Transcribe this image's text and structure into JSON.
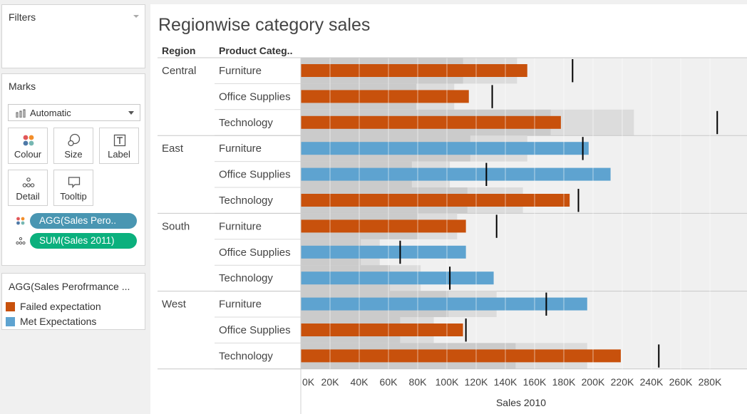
{
  "filters": {
    "title": "Filters"
  },
  "marks": {
    "title": "Marks",
    "mark_type": "Automatic",
    "buttons": [
      {
        "label": "Colour",
        "icon": "colour-icon"
      },
      {
        "label": "Size",
        "icon": "size-icon"
      },
      {
        "label": "Label",
        "icon": "label-icon"
      },
      {
        "label": "Detail",
        "icon": "detail-icon"
      },
      {
        "label": "Tooltip",
        "icon": "tooltip-icon"
      }
    ],
    "pills": [
      {
        "label": "AGG(Sales Pero..",
        "color": "#4996b2",
        "icon": "colour-icon"
      },
      {
        "label": "SUM(Sales 2011)",
        "color": "#0bb07d",
        "icon": "detail-icon"
      }
    ]
  },
  "legend": {
    "title": "AGG(Sales Perofrmance ...",
    "items": [
      {
        "label": "Failed expectation",
        "color": "#c8510c"
      },
      {
        "label": "Met Expectations",
        "color": "#5ea3d0"
      }
    ]
  },
  "chart_data": {
    "type": "bar",
    "title": "Regionwise category sales",
    "row_headers": [
      "Region",
      "Product Categ.."
    ],
    "xlabel": "Sales 2010",
    "xlim": [
      0,
      300000
    ],
    "x_ticks": [
      "0K",
      "20K",
      "40K",
      "60K",
      "80K",
      "100K",
      "120K",
      "140K",
      "160K",
      "180K",
      "200K",
      "220K",
      "240K",
      "260K",
      "280K"
    ],
    "x_tick_values": [
      0,
      20000,
      40000,
      60000,
      80000,
      100000,
      120000,
      140000,
      160000,
      180000,
      200000,
      220000,
      240000,
      260000,
      280000
    ],
    "colors": {
      "Failed expectation": "#c8510c",
      "Met Expectations": "#5ea3d0"
    },
    "regions": [
      {
        "name": "Central",
        "rows": [
          {
            "category": "Furniture",
            "value": 155000,
            "target": 186000,
            "band_inner": 111000,
            "band_outer": 148000,
            "status": "Failed expectation"
          },
          {
            "category": "Office Supplies",
            "value": 115000,
            "target": 131000,
            "band_inner": 79000,
            "band_outer": 105000,
            "status": "Failed expectation"
          },
          {
            "category": "Technology",
            "value": 178000,
            "target": 285000,
            "band_inner": 171000,
            "band_outer": 228000,
            "status": "Failed expectation"
          }
        ]
      },
      {
        "name": "East",
        "rows": [
          {
            "category": "Furniture",
            "value": 197000,
            "target": 193000,
            "band_inner": 116000,
            "band_outer": 155000,
            "status": "Met Expectations"
          },
          {
            "category": "Office Supplies",
            "value": 212000,
            "target": 127000,
            "band_inner": 76000,
            "band_outer": 102000,
            "status": "Met Expectations"
          },
          {
            "category": "Technology",
            "value": 184000,
            "target": 190000,
            "band_inner": 114000,
            "band_outer": 152000,
            "status": "Failed expectation"
          }
        ]
      },
      {
        "name": "South",
        "rows": [
          {
            "category": "Furniture",
            "value": 113000,
            "target": 134000,
            "band_inner": 80000,
            "band_outer": 107000,
            "status": "Failed expectation"
          },
          {
            "category": "Office Supplies",
            "value": 113000,
            "target": 68000,
            "band_inner": 41000,
            "band_outer": 54000,
            "status": "Met Expectations"
          },
          {
            "category": "Technology",
            "value": 132000,
            "target": 102000,
            "band_inner": 61000,
            "band_outer": 82000,
            "status": "Met Expectations"
          }
        ]
      },
      {
        "name": "West",
        "rows": [
          {
            "category": "Furniture",
            "value": 196000,
            "target": 168000,
            "band_inner": 101000,
            "band_outer": 134000,
            "status": "Met Expectations"
          },
          {
            "category": "Office Supplies",
            "value": 111000,
            "target": 113000,
            "band_inner": 68000,
            "band_outer": 91000,
            "status": "Failed expectation"
          },
          {
            "category": "Technology",
            "value": 219000,
            "target": 245000,
            "band_inner": 147000,
            "band_outer": 196000,
            "status": "Failed expectation"
          }
        ]
      }
    ]
  }
}
